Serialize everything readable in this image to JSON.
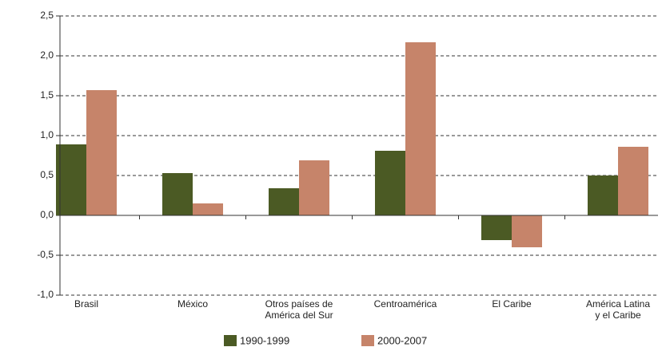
{
  "chart_data": {
    "type": "bar",
    "categories": [
      "Brasil",
      "México",
      "Otros países de\nAmérica del Sur",
      "Centroamérica",
      "El Caribe",
      "América Latina\ny el Caribe"
    ],
    "series": [
      {
        "name": "1990-1999",
        "color": "#4b5a24",
        "values": [
          0.89,
          0.53,
          0.34,
          0.81,
          -0.31,
          0.5
        ]
      },
      {
        "name": "2000-2007",
        "color": "#c6846a",
        "values": [
          1.57,
          0.15,
          0.69,
          2.17,
          -0.4,
          0.86
        ]
      }
    ],
    "ylim": [
      -1.0,
      2.5
    ],
    "yticks": [
      {
        "value": -1.0,
        "label": "-1,0"
      },
      {
        "value": -0.5,
        "label": "-0,5"
      },
      {
        "value": 0,
        "label": "0,0"
      },
      {
        "value": 0.5,
        "label": "0,5"
      },
      {
        "value": 1.0,
        "label": "1,0"
      },
      {
        "value": 1.5,
        "label": "1,5"
      },
      {
        "value": 2.0,
        "label": "2,0"
      },
      {
        "value": 2.5,
        "label": "2,5"
      }
    ],
    "grid": true,
    "legend": "bottom"
  }
}
